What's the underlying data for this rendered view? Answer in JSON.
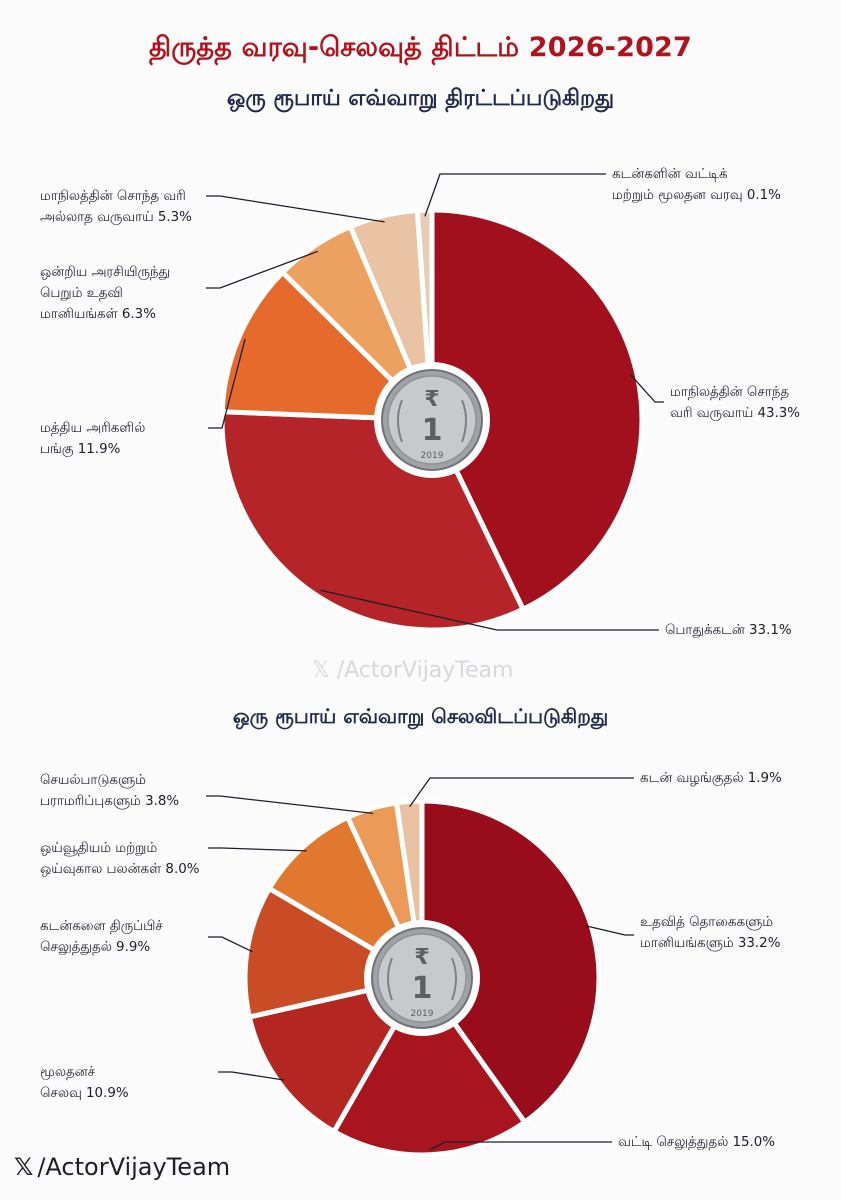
{
  "title": "திருத்த வரவு-செலவுத் திட்டம் 2026-2027",
  "watermark": {
    "mid": "𝕏 /ActorVijayTeam",
    "bottom_handle": "/ActorVijayTeam",
    "bottom_icon": "𝕏"
  },
  "coin": {
    "year": "2019",
    "symbol": "₹",
    "denomination": "1"
  },
  "chart_data": [
    {
      "type": "pie",
      "title": "ஒரு ரூபாய் எவ்வாறு திரட்டப்படுகிறது",
      "unit": "%",
      "slices": [
        {
          "label": "மாநிலத்தின் சொந்த வரி வருவாய் 43.3%",
          "lines": [
            "மாநிலத்தின் சொந்த",
            "வரி வருவாய் 43.3%"
          ],
          "value": 43.3,
          "color": "#a3101d"
        },
        {
          "label": "பொதுக்கடன் 33.1%",
          "lines": [
            "பொதுக்கடன் 33.1%"
          ],
          "value": 33.1,
          "color": "#b52428"
        },
        {
          "label": "மத்திய அரிகளில் பங்கு 11.9%",
          "lines": [
            "மத்திய அரிகளில்",
            "பங்கு 11.9%"
          ],
          "value": 11.9,
          "color": "#e66a2c"
        },
        {
          "label": "ஒன்றிய அரசியிருந்து பெறும் உதவி மானியங்கள் 6.3%",
          "lines": [
            "ஒன்றிய அரசியிருந்து",
            "பெறும் உதவி",
            "மானியங்கள் 6.3%"
          ],
          "value": 6.3,
          "color": "#eda160"
        },
        {
          "label": "மாநிலத்தின் சொந்த வரி அல்லாத வருவாய் 5.3%",
          "lines": [
            "மாநிலத்தின் சொந்த வரி",
            "அல்லாத வருவாய் 5.3%"
          ],
          "value": 5.3,
          "color": "#e9c3a4"
        },
        {
          "label": "கடன்களின் வட்டிக் மற்றும் மூலதன வரவு 0.1%",
          "lines": [
            "கடன்களின் வட்டிக்",
            "மற்றும் மூலதன வரவு 0.1%"
          ],
          "value": 0.1,
          "color": "#e7cdb7"
        }
      ]
    },
    {
      "type": "pie",
      "title": "ஒரு ரூபாய் எவ்வாறு செலவிடப்படுகிறது",
      "unit": "%",
      "slices": [
        {
          "label": "உதவித் தொகைகளும் மானியங்களும் 33.2%",
          "lines": [
            "உதவித் தொகைகளும்",
            "மானியங்களும் 33.2%"
          ],
          "value": 33.2,
          "color": "#990c1c"
        },
        {
          "label": "வட்டி செலுத்துதல் 15.0%",
          "lines": [
            "வட்டி செலுத்துதல் 15.0%"
          ],
          "value": 15.0,
          "color": "#a8151f"
        },
        {
          "label": "மூலதனச் செலவு 10.9%",
          "lines": [
            "மூலதனச்",
            "செலவு 10.9%"
          ],
          "value": 10.9,
          "color": "#b32621"
        },
        {
          "label": "கடன்களை திருப்பிச் செலுத்துதல் 9.9%",
          "lines": [
            "கடன்களை திருப்பிச்",
            "செலுத்துதல் 9.9%"
          ],
          "value": 9.9,
          "color": "#c94c27"
        },
        {
          "label": "ஒய்வூதியம் மற்றும் ஒய்வுகால பலன்கள் 8.0%",
          "lines": [
            "ஒய்வூதியம் மற்றும்",
            "ஒய்வுகால பலன்கள் 8.0%"
          ],
          "value": 8.0,
          "color": "#e0782f"
        },
        {
          "label": "செயல்பாடுகளும் பராமரிப்புகளும் 3.8%",
          "lines": [
            "செயல்பாடுகளும்",
            "பராமரிப்புகளும் 3.8%"
          ],
          "value": 3.8,
          "color": "#eb9a58"
        },
        {
          "label": "கடன் வழங்குதல் 1.9%",
          "lines": [
            "கடன் வழங்குதல் 1.9%"
          ],
          "value": 1.9,
          "color": "#e8c2a2"
        }
      ]
    }
  ]
}
